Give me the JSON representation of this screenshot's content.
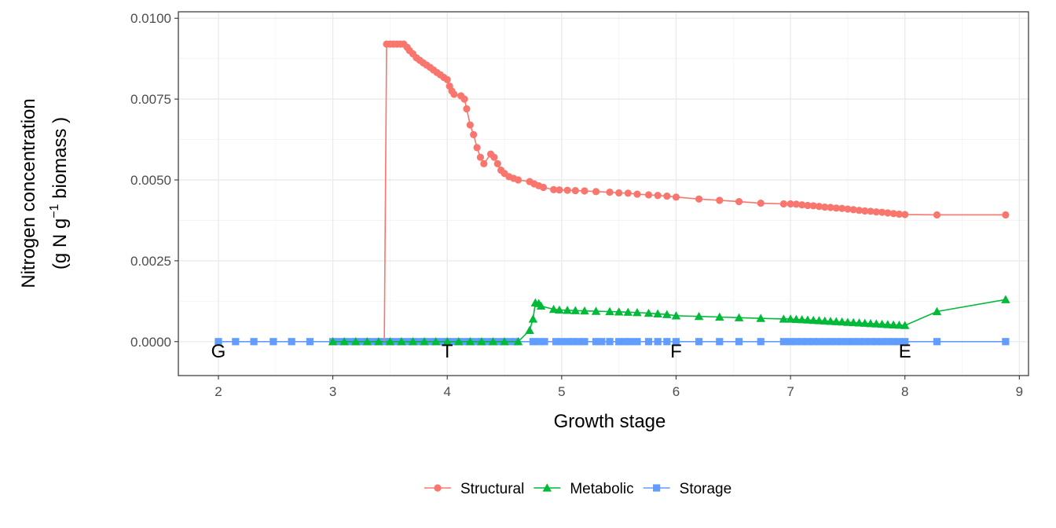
{
  "chart_data": {
    "type": "line",
    "xlabel": "Growth stage",
    "ylabel_line1": "Nitrogen concentration",
    "ylabel_line2_parts": [
      "(g N  g",
      "−1",
      "  biomass )"
    ],
    "xlim": [
      1.65,
      9.08
    ],
    "ylim": [
      -0.00105,
      0.0102
    ],
    "x_ticks": [
      2,
      3,
      4,
      5,
      6,
      7,
      8,
      9
    ],
    "x_tick_labels": [
      "2",
      "3",
      "4",
      "5",
      "6",
      "7",
      "8",
      "9"
    ],
    "y_ticks": [
      0,
      0.0025,
      0.005,
      0.0075,
      0.01
    ],
    "y_tick_labels": [
      "0.0000",
      "0.0025",
      "0.0050",
      "0.0075",
      "0.0100"
    ],
    "grid": true,
    "legend_position": "bottom",
    "stage_labels": [
      {
        "text": "G",
        "x": 2.0
      },
      {
        "text": "T",
        "x": 4.0
      },
      {
        "text": "F",
        "x": 6.0
      },
      {
        "text": "E",
        "x": 8.0
      }
    ],
    "series": [
      {
        "name": "Structural",
        "color": "#F8766D",
        "marker": "circle",
        "line_points": [
          [
            3.45,
            0.0
          ],
          [
            3.47,
            0.0092
          ]
        ],
        "points": [
          [
            3.47,
            0.0092
          ],
          [
            3.5,
            0.0092
          ],
          [
            3.53,
            0.0092
          ],
          [
            3.56,
            0.0092
          ],
          [
            3.59,
            0.0092
          ],
          [
            3.62,
            0.0092
          ],
          [
            3.65,
            0.0091
          ],
          [
            3.67,
            0.009
          ],
          [
            3.7,
            0.0089
          ],
          [
            3.73,
            0.00878
          ],
          [
            3.76,
            0.0087
          ],
          [
            3.79,
            0.00862
          ],
          [
            3.82,
            0.00855
          ],
          [
            3.85,
            0.00848
          ],
          [
            3.88,
            0.0084
          ],
          [
            3.91,
            0.00832
          ],
          [
            3.94,
            0.00825
          ],
          [
            3.97,
            0.00817
          ],
          [
            4.0,
            0.0081
          ],
          [
            4.02,
            0.0079
          ],
          [
            4.04,
            0.00775
          ],
          [
            4.06,
            0.00765
          ],
          [
            4.12,
            0.0076
          ],
          [
            4.15,
            0.0075
          ],
          [
            4.17,
            0.0072
          ],
          [
            4.2,
            0.0067
          ],
          [
            4.23,
            0.0064
          ],
          [
            4.26,
            0.006
          ],
          [
            4.29,
            0.0057
          ],
          [
            4.32,
            0.0055
          ],
          [
            4.38,
            0.0058
          ],
          [
            4.41,
            0.0057
          ],
          [
            4.44,
            0.0055
          ],
          [
            4.47,
            0.0053
          ],
          [
            4.5,
            0.0052
          ],
          [
            4.54,
            0.0051
          ],
          [
            4.58,
            0.00505
          ],
          [
            4.62,
            0.005
          ],
          [
            4.72,
            0.00495
          ],
          [
            4.76,
            0.00488
          ],
          [
            4.8,
            0.00482
          ],
          [
            4.84,
            0.00477
          ],
          [
            4.93,
            0.0047
          ],
          [
            4.98,
            0.00469
          ],
          [
            5.05,
            0.00468
          ],
          [
            5.12,
            0.00467
          ],
          [
            5.2,
            0.00466
          ],
          [
            5.3,
            0.00464
          ],
          [
            5.42,
            0.00462
          ],
          [
            5.5,
            0.0046
          ],
          [
            5.58,
            0.00459
          ],
          [
            5.66,
            0.00456
          ],
          [
            5.76,
            0.00454
          ],
          [
            5.84,
            0.00452
          ],
          [
            5.92,
            0.0045
          ],
          [
            6.0,
            0.00447
          ],
          [
            6.2,
            0.00441
          ],
          [
            6.38,
            0.00437
          ],
          [
            6.55,
            0.00433
          ],
          [
            6.74,
            0.00428
          ],
          [
            6.94,
            0.00426
          ],
          [
            7.0,
            0.00426
          ],
          [
            7.05,
            0.00425
          ],
          [
            7.1,
            0.00423
          ],
          [
            7.15,
            0.00421
          ],
          [
            7.2,
            0.0042
          ],
          [
            7.25,
            0.00418
          ],
          [
            7.3,
            0.00416
          ],
          [
            7.35,
            0.00415
          ],
          [
            7.4,
            0.00413
          ],
          [
            7.45,
            0.00412
          ],
          [
            7.5,
            0.0041
          ],
          [
            7.55,
            0.00408
          ],
          [
            7.6,
            0.00406
          ],
          [
            7.65,
            0.00404
          ],
          [
            7.7,
            0.00403
          ],
          [
            7.75,
            0.00401
          ],
          [
            7.8,
            0.004
          ],
          [
            7.85,
            0.00398
          ],
          [
            7.9,
            0.00396
          ],
          [
            7.95,
            0.00394
          ],
          [
            8.0,
            0.00393
          ],
          [
            8.28,
            0.00392
          ],
          [
            8.88,
            0.00392
          ]
        ]
      },
      {
        "name": "Metabolic",
        "color": "#00BA38",
        "marker": "triangle",
        "line_points": [],
        "points": [
          [
            3.0,
            0.0
          ],
          [
            3.1,
            0.0
          ],
          [
            3.2,
            0.0
          ],
          [
            3.3,
            0.0
          ],
          [
            3.4,
            0.0
          ],
          [
            3.5,
            0.0
          ],
          [
            3.6,
            0.0
          ],
          [
            3.7,
            0.0
          ],
          [
            3.8,
            0.0
          ],
          [
            3.9,
            0.0
          ],
          [
            4.0,
            0.0
          ],
          [
            4.1,
            0.0
          ],
          [
            4.2,
            0.0
          ],
          [
            4.3,
            0.0
          ],
          [
            4.4,
            0.0
          ],
          [
            4.5,
            0.0
          ],
          [
            4.62,
            0.0
          ],
          [
            4.72,
            0.00035
          ],
          [
            4.75,
            0.0007
          ],
          [
            4.77,
            0.0012
          ],
          [
            4.8,
            0.00118
          ],
          [
            4.82,
            0.0011
          ],
          [
            4.93,
            0.001
          ],
          [
            4.98,
            0.00098
          ],
          [
            5.05,
            0.00097
          ],
          [
            5.12,
            0.00096
          ],
          [
            5.2,
            0.00095
          ],
          [
            5.3,
            0.00094
          ],
          [
            5.42,
            0.00093
          ],
          [
            5.5,
            0.00092
          ],
          [
            5.58,
            0.00091
          ],
          [
            5.66,
            0.0009
          ],
          [
            5.76,
            0.00088
          ],
          [
            5.84,
            0.00086
          ],
          [
            5.92,
            0.00084
          ],
          [
            6.0,
            0.0008
          ],
          [
            6.2,
            0.00078
          ],
          [
            6.38,
            0.00076
          ],
          [
            6.55,
            0.00074
          ],
          [
            6.74,
            0.00072
          ],
          [
            6.94,
            0.0007
          ],
          [
            7.0,
            0.0007
          ],
          [
            7.05,
            0.00069
          ],
          [
            7.1,
            0.00068
          ],
          [
            7.15,
            0.00067
          ],
          [
            7.2,
            0.00066
          ],
          [
            7.25,
            0.00065
          ],
          [
            7.3,
            0.00064
          ],
          [
            7.35,
            0.00063
          ],
          [
            7.4,
            0.00062
          ],
          [
            7.45,
            0.00061
          ],
          [
            7.5,
            0.0006
          ],
          [
            7.55,
            0.00059
          ],
          [
            7.6,
            0.00058
          ],
          [
            7.65,
            0.00057
          ],
          [
            7.7,
            0.00056
          ],
          [
            7.75,
            0.00055
          ],
          [
            7.8,
            0.00054
          ],
          [
            7.85,
            0.00053
          ],
          [
            7.9,
            0.00052
          ],
          [
            7.95,
            0.00051
          ],
          [
            8.0,
            0.0005
          ],
          [
            8.28,
            0.00093
          ],
          [
            8.88,
            0.0013
          ]
        ]
      },
      {
        "name": "Storage",
        "color": "#619CFF",
        "marker": "square",
        "line_points": [],
        "points": [
          [
            2.0,
            0.0
          ],
          [
            2.15,
            0.0
          ],
          [
            2.31,
            0.0
          ],
          [
            2.48,
            0.0
          ],
          [
            2.64,
            0.0
          ],
          [
            2.8,
            0.0
          ],
          [
            3.0,
            0.0
          ],
          [
            3.05,
            0.0
          ],
          [
            3.1,
            0.0
          ],
          [
            3.15,
            0.0
          ],
          [
            3.2,
            0.0
          ],
          [
            3.25,
            0.0
          ],
          [
            3.3,
            0.0
          ],
          [
            3.35,
            0.0
          ],
          [
            3.4,
            0.0
          ],
          [
            3.45,
            0.0
          ],
          [
            3.5,
            0.0
          ],
          [
            3.55,
            0.0
          ],
          [
            3.6,
            0.0
          ],
          [
            3.65,
            0.0
          ],
          [
            3.7,
            0.0
          ],
          [
            3.75,
            0.0
          ],
          [
            3.8,
            0.0
          ],
          [
            3.85,
            0.0
          ],
          [
            3.9,
            0.0
          ],
          [
            3.95,
            0.0
          ],
          [
            4.0,
            0.0
          ],
          [
            4.05,
            0.0
          ],
          [
            4.1,
            0.0
          ],
          [
            4.15,
            0.0
          ],
          [
            4.2,
            0.0
          ],
          [
            4.25,
            0.0
          ],
          [
            4.3,
            0.0
          ],
          [
            4.35,
            0.0
          ],
          [
            4.4,
            0.0
          ],
          [
            4.45,
            0.0
          ],
          [
            4.5,
            0.0
          ],
          [
            4.55,
            0.0
          ],
          [
            4.6,
            0.0
          ],
          [
            4.75,
            0.0
          ],
          [
            4.8,
            0.0
          ],
          [
            4.85,
            0.0
          ],
          [
            4.95,
            0.0
          ],
          [
            5.0,
            0.0
          ],
          [
            5.05,
            0.0
          ],
          [
            5.1,
            0.0
          ],
          [
            5.15,
            0.0
          ],
          [
            5.2,
            0.0
          ],
          [
            5.3,
            0.0
          ],
          [
            5.35,
            0.0
          ],
          [
            5.42,
            0.0
          ],
          [
            5.5,
            0.0
          ],
          [
            5.55,
            0.0
          ],
          [
            5.6,
            0.0
          ],
          [
            5.66,
            0.0
          ],
          [
            5.76,
            0.0
          ],
          [
            5.84,
            0.0
          ],
          [
            5.92,
            0.0
          ],
          [
            6.0,
            0.0
          ],
          [
            6.2,
            0.0
          ],
          [
            6.38,
            0.0
          ],
          [
            6.55,
            0.0
          ],
          [
            6.74,
            0.0
          ],
          [
            6.94,
            0.0
          ],
          [
            7.0,
            0.0
          ],
          [
            7.05,
            0.0
          ],
          [
            7.1,
            0.0
          ],
          [
            7.15,
            0.0
          ],
          [
            7.2,
            0.0
          ],
          [
            7.25,
            0.0
          ],
          [
            7.3,
            0.0
          ],
          [
            7.35,
            0.0
          ],
          [
            7.4,
            0.0
          ],
          [
            7.45,
            0.0
          ],
          [
            7.5,
            0.0
          ],
          [
            7.55,
            0.0
          ],
          [
            7.6,
            0.0
          ],
          [
            7.65,
            0.0
          ],
          [
            7.7,
            0.0
          ],
          [
            7.75,
            0.0
          ],
          [
            7.8,
            0.0
          ],
          [
            7.85,
            0.0
          ],
          [
            7.9,
            0.0
          ],
          [
            7.95,
            0.0
          ],
          [
            8.0,
            0.0
          ],
          [
            8.28,
            0.0
          ],
          [
            8.88,
            0.0
          ]
        ]
      }
    ]
  }
}
